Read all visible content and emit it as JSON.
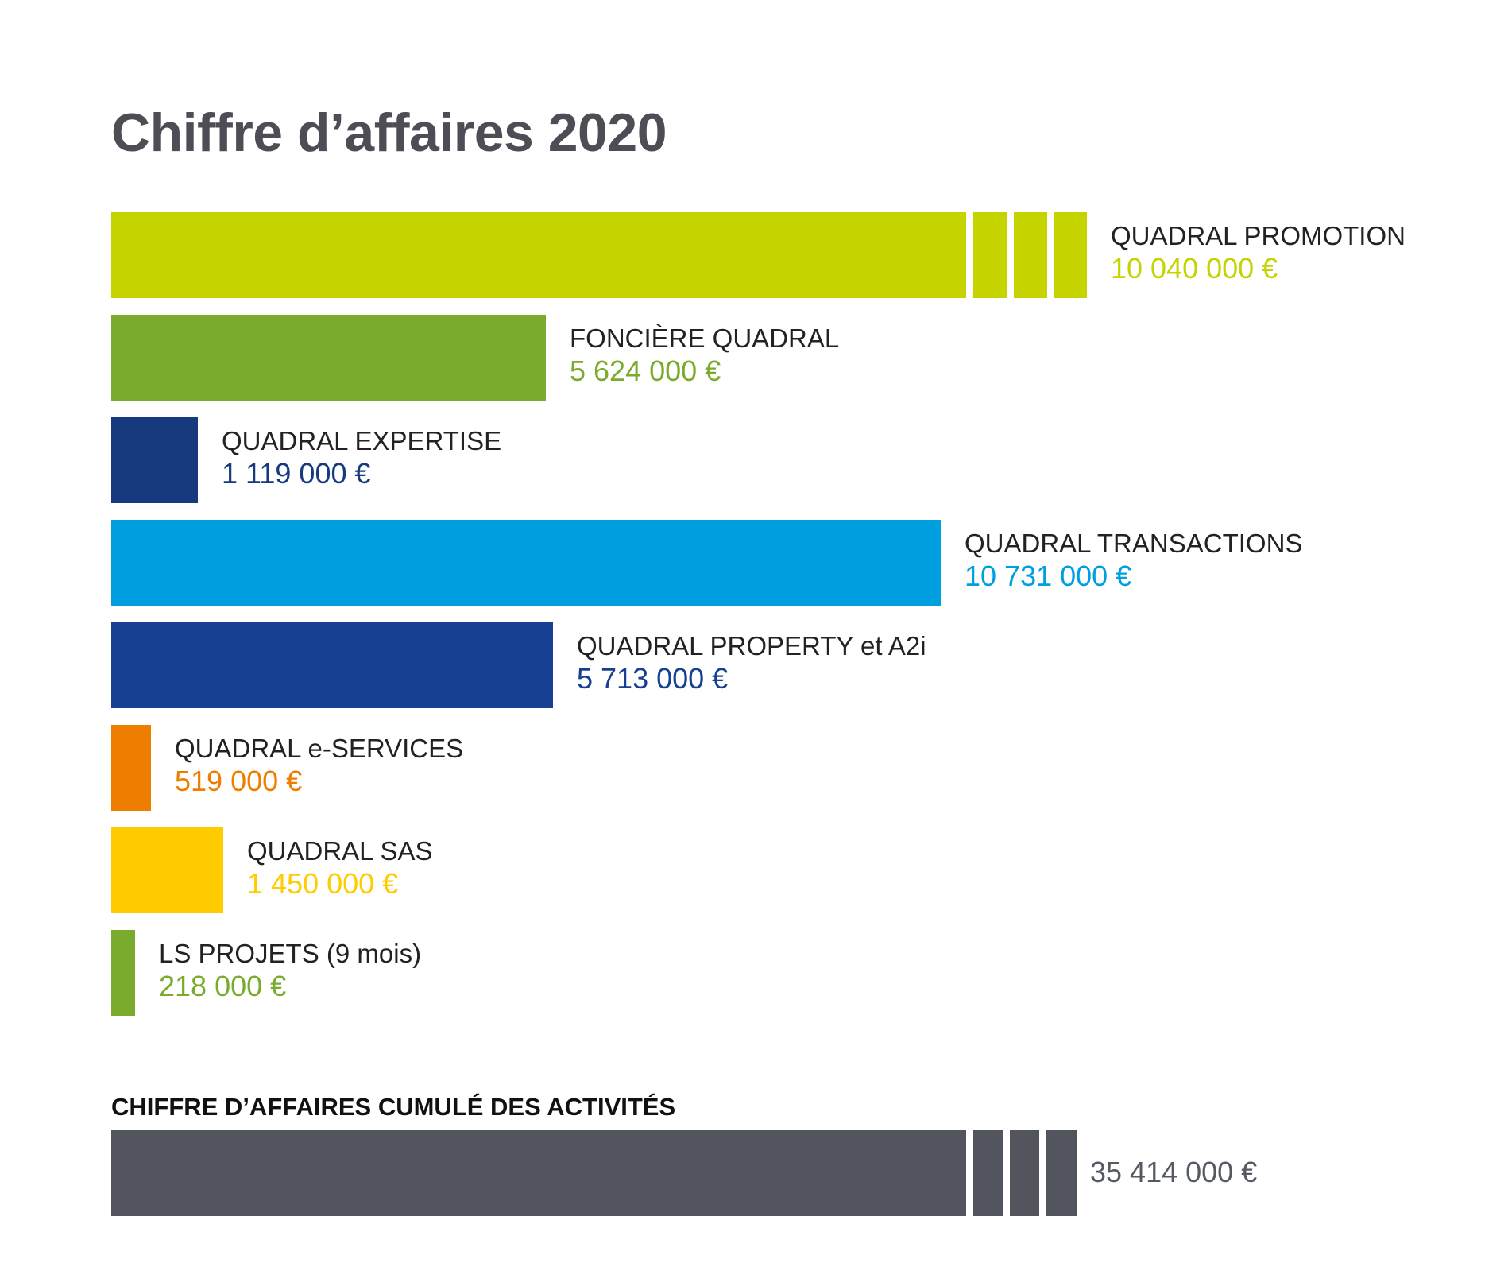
{
  "chart_data": {
    "type": "bar",
    "orientation": "horizontal",
    "title": "Chiffre d’affaires 2020",
    "categories": [
      "QUADRAL PROMOTION",
      "FONCIÈRE QUADRAL",
      "QUADRAL EXPERTISE",
      "QUADRAL TRANSACTIONS",
      "QUADRAL PROPERTY et A2i",
      "QUADRAL e-SERVICES",
      "QUADRAL SAS",
      "LS PROJETS (9 mois)"
    ],
    "values": [
      10040000,
      5624000,
      1119000,
      10731000,
      5713000,
      519000,
      1450000,
      218000
    ],
    "value_labels": [
      "10 040 000 €",
      "5 624 000 €",
      "1 119 000 €",
      "10 731 000 €",
      "5 713 000 €",
      "519 000 €",
      "1 450 000 €",
      "218 000 €"
    ],
    "colors": [
      "#c5d400",
      "#7aab2c",
      "#173a7e",
      "#009fe0",
      "#173f92",
      "#ef7d00",
      "#ffcc00",
      "#7aab2c"
    ],
    "axis_break": [
      true,
      false,
      false,
      false,
      false,
      false,
      false,
      false
    ],
    "total": {
      "label": "CHIFFRE D’AFFAIRES CUMULÉ DES ACTIVITÉS",
      "value": 35414000,
      "value_label": "35 414 000 €",
      "color": "#52545e",
      "axis_break": true
    },
    "xlabel": "",
    "ylabel": "",
    "grid": false,
    "legend": "none"
  }
}
